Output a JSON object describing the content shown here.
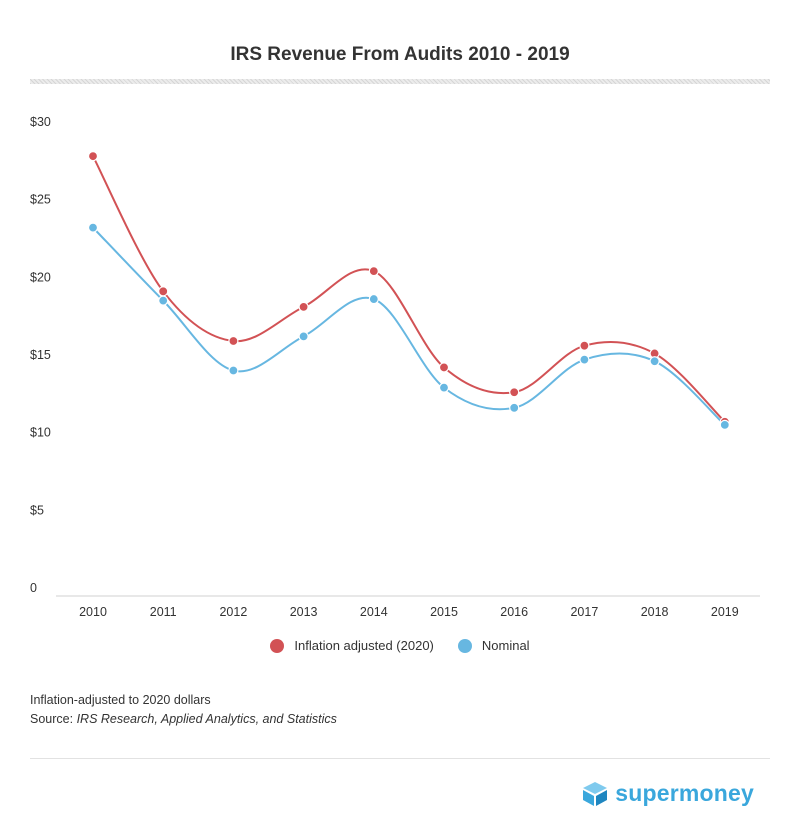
{
  "title": "IRS Revenue From Audits 2010 - 2019",
  "chart_data": {
    "type": "line",
    "title": "IRS Revenue From Audits 2010 - 2019",
    "categories": [
      "2010",
      "2011",
      "2012",
      "2013",
      "2014",
      "2015",
      "2016",
      "2017",
      "2018",
      "2019"
    ],
    "ylim": [
      0,
      30
    ],
    "yticks": [
      0,
      5,
      10,
      15,
      20,
      25,
      30
    ],
    "ytick_labels": [
      "0",
      "$5",
      "$10",
      "$15",
      "$20",
      "$25",
      "$30"
    ],
    "grid": false,
    "legend_position": "bottom-center",
    "series": [
      {
        "name": "Inflation adjusted (2020)",
        "color": "#d25255",
        "values": [
          27.8,
          19.1,
          15.9,
          18.1,
          20.4,
          14.2,
          12.6,
          15.6,
          15.1,
          10.7
        ]
      },
      {
        "name": "Nominal",
        "color": "#67b7e1",
        "values": [
          23.2,
          18.5,
          14.0,
          16.2,
          18.6,
          12.9,
          11.6,
          14.7,
          14.6,
          10.5
        ]
      }
    ]
  },
  "notes": {
    "line1": "Inflation-adjusted to 2020 dollars",
    "source_label": "Source: ",
    "source_text": "IRS Research, Applied Analytics, and Statistics"
  },
  "brand": {
    "name": "supermoney",
    "color": "#3aa7dc"
  }
}
